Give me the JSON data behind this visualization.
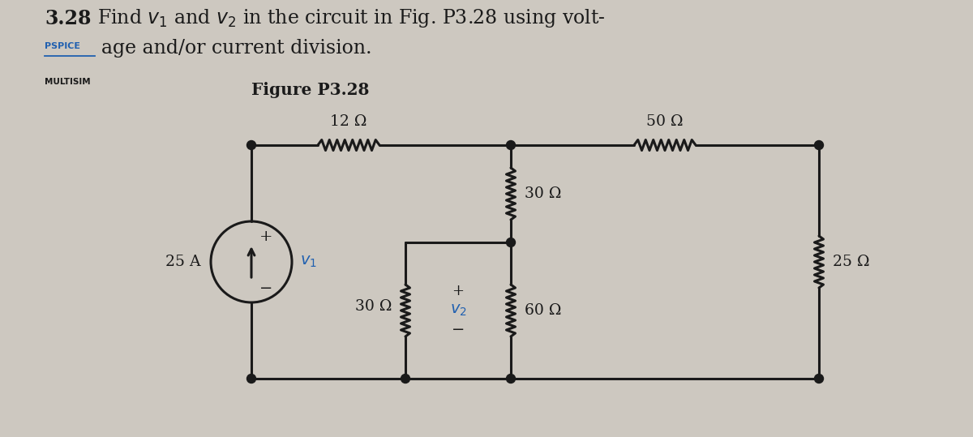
{
  "bg_color": "#cdc8c0",
  "circuit_color": "#1a1a1a",
  "blue_color": "#2060b0",
  "black_color": "#111111",
  "source_label": "25 A",
  "v1_label": "v_1",
  "v2_label": "v_2",
  "R12_label": "12 Ω",
  "R30top_label": "30 Ω",
  "R30bot_label": "30 Ω",
  "R50_label": "50 Ω",
  "R60_label": "60 Ω",
  "R25_label": "25 Ω",
  "fig_label": "Figure P3.28",
  "title_num": "3.28",
  "title_rest": "Find $v_1$ and $v_2$ in the circuit in Fig. P3.28 using volt-",
  "title_pspice": "PSPICE",
  "title_line2": "age and/or current division.",
  "title_multisim": "MULTISIM"
}
